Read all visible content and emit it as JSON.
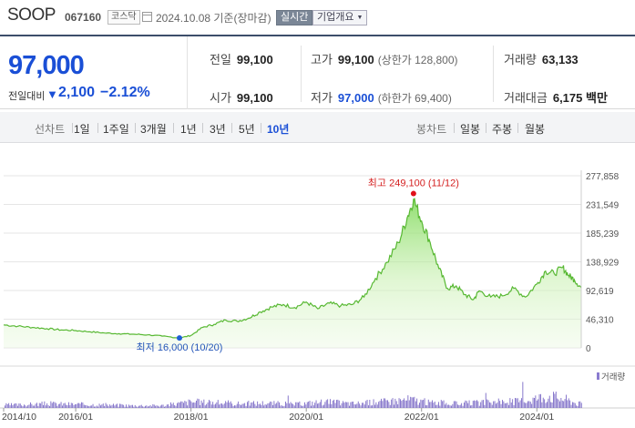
{
  "header": {
    "stock_name": "SOOP",
    "stock_code": "067160",
    "market": "코스닥",
    "date_text": "2024.10.08 기준(장마감)",
    "realtime_label": "실시간",
    "company_label": "기업개요"
  },
  "summary": {
    "current_price": "97,000",
    "change_label": "전일대비",
    "change_arrow": "▼",
    "change_amount": "2,100",
    "change_pct": "−2.12%",
    "prev_close": {
      "label": "전일",
      "value": "99,100"
    },
    "open": {
      "label": "시가",
      "value": "99,100"
    },
    "high": {
      "label": "고가",
      "value": "99,100",
      "sub": "(상한가 128,800)"
    },
    "low": {
      "label": "저가",
      "value": "97,000",
      "sub": "(하한가 69,400)"
    },
    "volume": {
      "label": "거래량",
      "value": "63,133"
    },
    "amount": {
      "label": "거래대금",
      "value": "6,175 백만"
    }
  },
  "tabs": {
    "line_label": "선차트",
    "line_items": [
      "1일",
      "1주일",
      "3개월",
      "1년",
      "3년",
      "5년",
      "10년"
    ],
    "active_index": 6,
    "candle_label": "봉차트",
    "candle_items": [
      "일봉",
      "주봉",
      "월봉"
    ]
  },
  "chart_data": {
    "type": "area",
    "y_ticks": [
      "277,858",
      "231,549",
      "185,239",
      "138,929",
      "92,619",
      "46,310",
      "0"
    ],
    "y_tick_values": [
      277858,
      231549,
      185239,
      138929,
      92619,
      46310,
      0
    ],
    "ylim": [
      0,
      277858
    ],
    "x_ticks": [
      "2014/10",
      "2016/01",
      "2018/01",
      "2020/01",
      "2022/01",
      "2024/01"
    ],
    "x_tick_values": [
      2014.75,
      2016.0,
      2018.0,
      2020.0,
      2022.0,
      2024.0
    ],
    "xlim": [
      2014.75,
      2024.77
    ],
    "high_annotation": "최고 249,100 (11/12)",
    "high_point": {
      "x": 2021.86,
      "y": 249100
    },
    "low_annotation": "최저 16,000 (10/20)",
    "low_point": {
      "x": 2017.8,
      "y": 16000
    },
    "volume_label": "거래량",
    "price_series": [
      [
        2014.75,
        37000
      ],
      [
        2015.0,
        35000
      ],
      [
        2015.25,
        33000
      ],
      [
        2015.5,
        31000
      ],
      [
        2015.75,
        29000
      ],
      [
        2016.0,
        28000
      ],
      [
        2016.25,
        26000
      ],
      [
        2016.5,
        24000
      ],
      [
        2016.75,
        23000
      ],
      [
        2017.0,
        22000
      ],
      [
        2017.25,
        21000
      ],
      [
        2017.5,
        19000
      ],
      [
        2017.8,
        16000
      ],
      [
        2018.0,
        20000
      ],
      [
        2018.2,
        33000
      ],
      [
        2018.4,
        38000
      ],
      [
        2018.6,
        45000
      ],
      [
        2018.8,
        43000
      ],
      [
        2019.0,
        48000
      ],
      [
        2019.2,
        58000
      ],
      [
        2019.4,
        66000
      ],
      [
        2019.6,
        70000
      ],
      [
        2019.8,
        65000
      ],
      [
        2020.0,
        74000
      ],
      [
        2020.2,
        63000
      ],
      [
        2020.4,
        72000
      ],
      [
        2020.6,
        68000
      ],
      [
        2020.8,
        70000
      ],
      [
        2021.0,
        82000
      ],
      [
        2021.2,
        112000
      ],
      [
        2021.4,
        138000
      ],
      [
        2021.6,
        170000
      ],
      [
        2021.75,
        210000
      ],
      [
        2021.86,
        240000
      ],
      [
        2022.0,
        205000
      ],
      [
        2022.15,
        170000
      ],
      [
        2022.3,
        128000
      ],
      [
        2022.45,
        96000
      ],
      [
        2022.6,
        100000
      ],
      [
        2022.75,
        86000
      ],
      [
        2022.9,
        78000
      ],
      [
        2023.0,
        92000
      ],
      [
        2023.2,
        82000
      ],
      [
        2023.4,
        84000
      ],
      [
        2023.6,
        96000
      ],
      [
        2023.8,
        82000
      ],
      [
        2024.0,
        103000
      ],
      [
        2024.15,
        124000
      ],
      [
        2024.3,
        120000
      ],
      [
        2024.45,
        130000
      ],
      [
        2024.55,
        117000
      ],
      [
        2024.65,
        110000
      ],
      [
        2024.77,
        97000
      ]
    ],
    "volume_series": [
      [
        2015.0,
        0.25
      ],
      [
        2015.5,
        0.35
      ],
      [
        2016.0,
        0.3
      ],
      [
        2016.5,
        0.25
      ],
      [
        2017.0,
        0.2
      ],
      [
        2017.5,
        0.2
      ],
      [
        2018.0,
        0.5
      ],
      [
        2018.3,
        0.45
      ],
      [
        2018.8,
        0.35
      ],
      [
        2019.3,
        0.4
      ],
      [
        2019.8,
        0.3
      ],
      [
        2020.3,
        0.5
      ],
      [
        2020.8,
        0.35
      ],
      [
        2021.3,
        0.5
      ],
      [
        2021.8,
        0.7
      ],
      [
        2022.1,
        0.45
      ],
      [
        2022.6,
        0.35
      ],
      [
        2023.2,
        0.45
      ],
      [
        2023.7,
        0.55
      ],
      [
        2024.0,
        0.8
      ],
      [
        2024.2,
        1.0
      ],
      [
        2024.5,
        0.7
      ],
      [
        2024.7,
        0.35
      ]
    ]
  }
}
